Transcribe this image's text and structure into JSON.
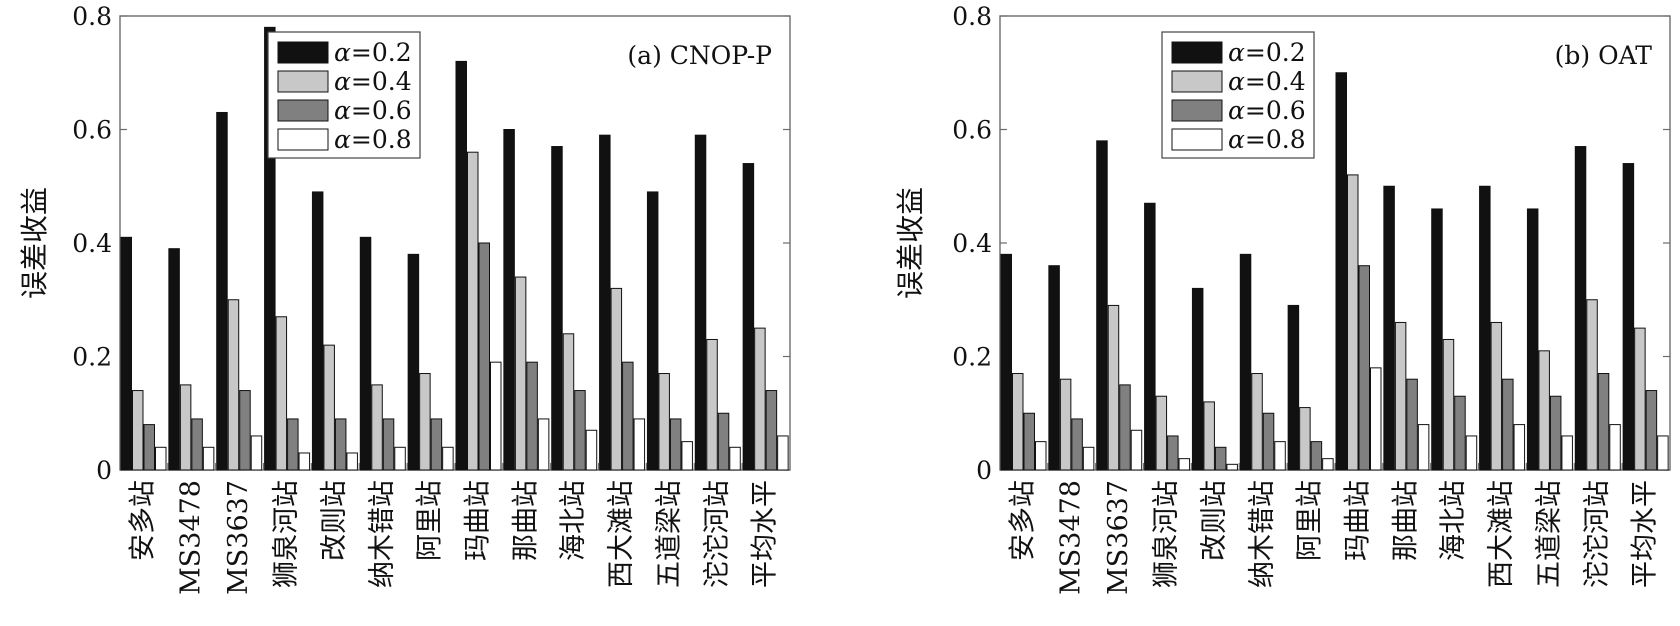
{
  "chart_data": [
    {
      "type": "bar",
      "title": "(a) CNOP-P",
      "ylabel": "误差收益",
      "xlabel": "",
      "ylim": [
        0,
        0.8
      ],
      "yticks": [
        "0",
        "0.2",
        "0.4",
        "0.6",
        "0.8"
      ],
      "legend_position": "top-center",
      "categories": [
        "安多站",
        "MS3478",
        "MS3637",
        "狮泉河站",
        "改则站",
        "纳木错站",
        "阿里站",
        "玛曲站",
        "那曲站",
        "海北站",
        "西大滩站",
        "五道梁站",
        "沱沱河站",
        "平均水平"
      ],
      "series": [
        {
          "name": "α=0.2",
          "legend_symbol": "α",
          "legend_value": "=0.2",
          "color": "#111111",
          "values": [
            0.41,
            0.39,
            0.63,
            0.78,
            0.49,
            0.41,
            0.38,
            0.72,
            0.6,
            0.57,
            0.59,
            0.49,
            0.59,
            0.54
          ]
        },
        {
          "name": "α=0.4",
          "legend_symbol": "α",
          "legend_value": "=0.4",
          "color": "#c8c8c8",
          "values": [
            0.14,
            0.15,
            0.3,
            0.27,
            0.22,
            0.15,
            0.17,
            0.56,
            0.34,
            0.24,
            0.32,
            0.17,
            0.23,
            0.25
          ]
        },
        {
          "name": "α=0.6",
          "legend_symbol": "α",
          "legend_value": "=0.6",
          "color": "#808080",
          "values": [
            0.08,
            0.09,
            0.14,
            0.09,
            0.09,
            0.09,
            0.09,
            0.4,
            0.19,
            0.14,
            0.19,
            0.09,
            0.1,
            0.14
          ]
        },
        {
          "name": "α=0.8",
          "legend_symbol": "α",
          "legend_value": "=0.8",
          "color": "#ffffff",
          "values": [
            0.04,
            0.04,
            0.06,
            0.03,
            0.03,
            0.04,
            0.04,
            0.19,
            0.09,
            0.07,
            0.09,
            0.05,
            0.04,
            0.06
          ]
        }
      ]
    },
    {
      "type": "bar",
      "title": "(b) OAT",
      "ylabel": "误差收益",
      "xlabel": "",
      "ylim": [
        0,
        0.8
      ],
      "yticks": [
        "0",
        "0.2",
        "0.4",
        "0.6",
        "0.8"
      ],
      "legend_position": "top-center",
      "categories": [
        "安多站",
        "MS3478",
        "MS3637",
        "狮泉河站",
        "改则站",
        "纳木错站",
        "阿里站",
        "玛曲站",
        "那曲站",
        "海北站",
        "西大滩站",
        "五道梁站",
        "沱沱河站",
        "平均水平"
      ],
      "series": [
        {
          "name": "α=0.2",
          "legend_symbol": "α",
          "legend_value": "=0.2",
          "color": "#111111",
          "values": [
            0.38,
            0.36,
            0.58,
            0.47,
            0.32,
            0.38,
            0.29,
            0.7,
            0.5,
            0.46,
            0.5,
            0.46,
            0.57,
            0.54
          ]
        },
        {
          "name": "α=0.4",
          "legend_symbol": "α",
          "legend_value": "=0.4",
          "color": "#c8c8c8",
          "values": [
            0.17,
            0.16,
            0.29,
            0.13,
            0.12,
            0.17,
            0.11,
            0.52,
            0.26,
            0.23,
            0.26,
            0.21,
            0.3,
            0.25
          ]
        },
        {
          "name": "α=0.6",
          "legend_symbol": "α",
          "legend_value": "=0.6",
          "color": "#808080",
          "values": [
            0.1,
            0.09,
            0.15,
            0.06,
            0.04,
            0.1,
            0.05,
            0.36,
            0.16,
            0.13,
            0.16,
            0.13,
            0.17,
            0.14
          ]
        },
        {
          "name": "α=0.8",
          "legend_symbol": "α",
          "legend_value": "=0.8",
          "color": "#ffffff",
          "values": [
            0.05,
            0.04,
            0.07,
            0.02,
            0.01,
            0.05,
            0.02,
            0.18,
            0.08,
            0.06,
            0.08,
            0.06,
            0.08,
            0.06
          ]
        }
      ]
    }
  ]
}
